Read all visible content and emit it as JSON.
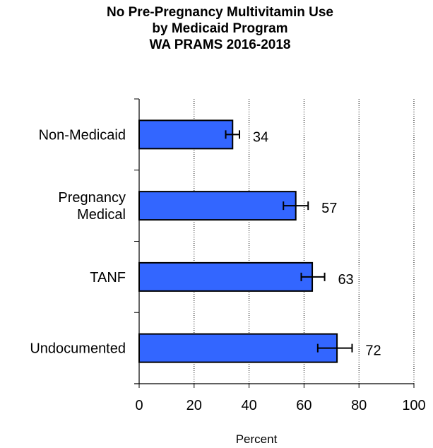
{
  "title_lines": [
    "No Pre-Pregnancy Multivitamin Use",
    "by Medicaid Program",
    "WA PRAMS 2016-2018"
  ],
  "chart_data": {
    "type": "bar",
    "orientation": "horizontal",
    "title": "No Pre-Pregnancy Multivitamin Use by Medicaid Program WA PRAMS 2016-2018",
    "xlabel": "Percent",
    "ylabel": "",
    "xlim": [
      0,
      100
    ],
    "x_ticks": [
      0,
      20,
      40,
      60,
      80,
      100
    ],
    "x_tick_labels": [
      "0",
      "20",
      "40",
      "60",
      "80",
      "100"
    ],
    "grid": "vertical dotted gridlines at 20, 40, 60, 80, 100",
    "bar_color": "#3366FF",
    "categories": [
      [
        "Non-Medicaid"
      ],
      [
        "Pregnancy",
        "Medical"
      ],
      [
        "TANF"
      ],
      [
        "Undocumented"
      ]
    ],
    "values": [
      34,
      57,
      63,
      72
    ],
    "value_labels": [
      "34",
      "57",
      "63",
      "72"
    ],
    "error_low": [
      31.5,
      52.5,
      59,
      65
    ],
    "error_high": [
      36.5,
      61.5,
      67.5,
      77.5
    ]
  }
}
